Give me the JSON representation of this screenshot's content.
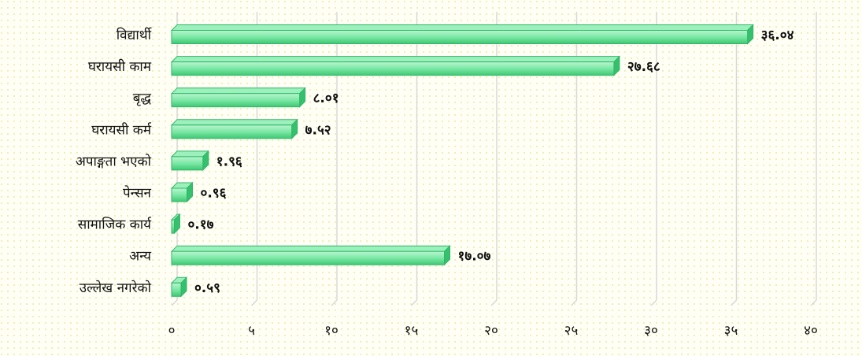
{
  "chart_data": {
    "type": "bar",
    "orientation": "horizontal",
    "categories": [
      "विद्यार्थी",
      "घरायसी काम",
      "बृद्ध",
      "घरायसी कर्म",
      "अपाङ्गता भएको",
      "पेन्सन",
      "सामाजिक कार्य",
      "अन्य",
      "उल्लेख नगरेको"
    ],
    "values": [
      36.04,
      27.68,
      8.01,
      7.52,
      1.96,
      0.96,
      0.17,
      17.07,
      0.59
    ],
    "value_labels": [
      "३६.०४",
      "२७.६८",
      "८.०१",
      "७.५२",
      "१.९६",
      "०.९६",
      "०.१७",
      "१७.०७",
      "०.५९"
    ],
    "color": "#5fe08f",
    "xlim": [
      0,
      40
    ],
    "xticks": [
      {
        "value": 0,
        "label": "०"
      },
      {
        "value": 5,
        "label": "५"
      },
      {
        "value": 10,
        "label": "१०"
      },
      {
        "value": 15,
        "label": "१५"
      },
      {
        "value": 20,
        "label": "२०"
      },
      {
        "value": 25,
        "label": "२५"
      },
      {
        "value": 30,
        "label": "३०"
      },
      {
        "value": 35,
        "label": "३५"
      },
      {
        "value": 40,
        "label": "४०"
      }
    ],
    "grid": true
  }
}
